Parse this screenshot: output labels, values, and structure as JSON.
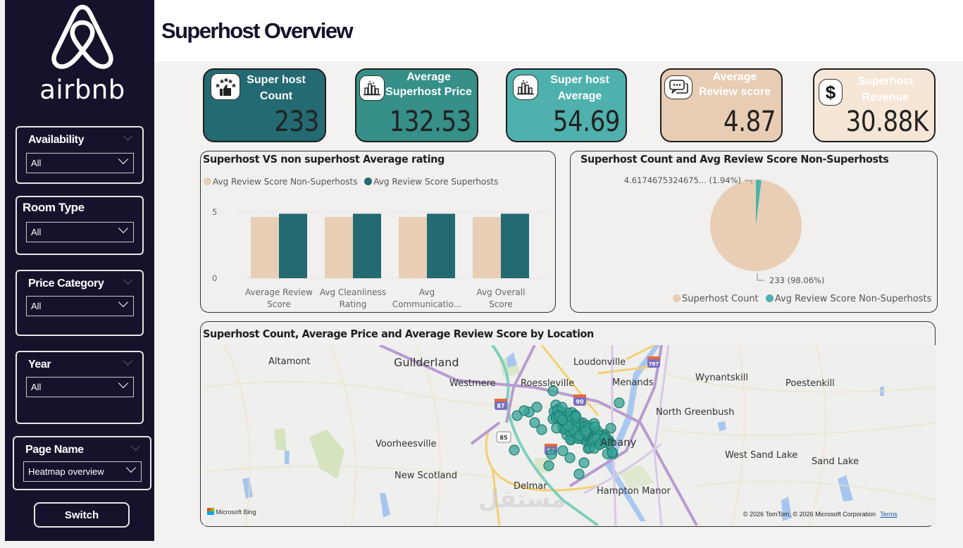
{
  "brand": {
    "logo_text": "airbnb"
  },
  "header": {
    "title": "Superhost Overview"
  },
  "sidebar": {
    "slicers": [
      {
        "title": "Availability",
        "value": "All"
      },
      {
        "title": "Room Type",
        "value": "All"
      },
      {
        "title": "Price Category",
        "value": "All"
      },
      {
        "title": "Year",
        "value": "All"
      },
      {
        "title": "Page Name",
        "value": "Heatmap overview"
      }
    ],
    "switch_label": "Switch"
  },
  "kpis": [
    {
      "label_line1": "Super host",
      "label_line2": "Count",
      "value": "233",
      "icon": "stars-thumbs-up-icon",
      "bg": "#236a72"
    },
    {
      "label_line1": "Average",
      "label_line2": "Superhost Price",
      "value": "132.53",
      "icon": "bar-chart-icon",
      "bg": "#368f88"
    },
    {
      "label_line1": "Super host",
      "label_line2": "Average",
      "value": "54.69",
      "icon": "bar-chart-icon",
      "bg": "#4fb1ad"
    },
    {
      "label_line1": "Average",
      "label_line2": "Review score",
      "value": "4.87",
      "icon": "chat-bubbles-icon",
      "bg": "#e8ccb3"
    },
    {
      "label_line1": "Superhost",
      "label_line2": "Revenue",
      "value": "30.88K",
      "icon": "dollar-icon",
      "bg": "#f5e6d6"
    }
  ],
  "colors": {
    "sidebar": "#16122b",
    "non_superhost": "#e8ceb4",
    "superhost": "#236a72",
    "pie_teal": "#4db3ac",
    "map_point": "#36a296"
  },
  "chart_data": [
    {
      "type": "bar",
      "title": "Superhost VS non superhost Average rating",
      "categories": [
        "Average Review Score",
        "Avg Cleanliness Rating",
        "Avg Communicatio...",
        "Avg Overall Score"
      ],
      "category_lines": [
        [
          "Average Review",
          "Score"
        ],
        [
          "Avg Cleanliness",
          "Rating"
        ],
        [
          "Avg",
          "Communicatio..."
        ],
        [
          "Avg Overall",
          "Score"
        ]
      ],
      "series": [
        {
          "name": "Avg Review Score Non-Superhosts",
          "values": [
            4.62,
            4.62,
            4.62,
            4.62
          ]
        },
        {
          "name": "Avg Review Score Superhosts",
          "values": [
            4.87,
            4.87,
            4.87,
            4.87
          ]
        }
      ],
      "yticks": [
        0,
        5
      ],
      "ylim": [
        0,
        5
      ],
      "grid": true,
      "legend": "top-left"
    },
    {
      "type": "pie",
      "title": "Superhost Count and Avg Review Score Non-Superhosts",
      "slices": [
        {
          "name": "Superhost Count",
          "value": 233,
          "percent": 98.06,
          "label": "233 (98.06%)"
        },
        {
          "name": "Avg Review Score Non-Superhosts",
          "value": 4.6174675324675,
          "percent": 1.94,
          "label": "4.6174675324675... (1.94%)"
        }
      ],
      "legend": "bottom"
    }
  ],
  "map": {
    "title": "Superhost Count, Average Price and Average Review Score by Location",
    "places": [
      "Altamont",
      "Guilderland",
      "Westmere",
      "Roessleville",
      "Loudonville",
      "Menands",
      "Wynantskill",
      "Poestenkill",
      "North Greenbush",
      "Voorheesville",
      "West Sand Lake",
      "Sand Lake",
      "New Scotland",
      "Delmar",
      "Hampton Manor",
      "Albany"
    ],
    "shields": [
      "87",
      "90",
      "787",
      "85",
      "87"
    ],
    "provider": "Microsoft Bing",
    "copyright": "© 2026 TomTom, © 2026 Microsoft Corporation",
    "terms": "Terms"
  }
}
